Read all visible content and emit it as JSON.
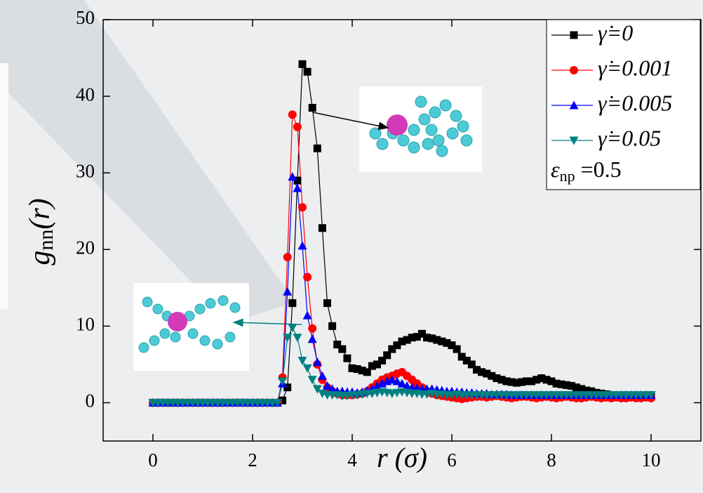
{
  "chart_data": {
    "type": "line",
    "x_label": "r (σ)",
    "y_label": {
      "main": "g",
      "subscript": "nn",
      "suffix": "(r)"
    },
    "annotation": {
      "symbol": "ε",
      "subscript": "np",
      "text": " =0.5"
    },
    "xlim": [
      -1,
      11
    ],
    "ylim": [
      -5,
      50
    ],
    "xticks": [
      0,
      2,
      4,
      6,
      8,
      10
    ],
    "yticks": [
      0,
      10,
      20,
      30,
      40,
      50
    ],
    "x": [
      0,
      0.1,
      0.2,
      0.3,
      0.4,
      0.5,
      0.6,
      0.7,
      0.8,
      0.9,
      1,
      1.1,
      1.2,
      1.3,
      1.4,
      1.5,
      1.6,
      1.7,
      1.8,
      1.9,
      2,
      2.1,
      2.2,
      2.3,
      2.4,
      2.5,
      2.6,
      2.7,
      2.8,
      2.9,
      3,
      3.1,
      3.2,
      3.3,
      3.4,
      3.5,
      3.6,
      3.7,
      3.8,
      3.9,
      4,
      4.1,
      4.2,
      4.3,
      4.4,
      4.5,
      4.6,
      4.7,
      4.8,
      4.9,
      5,
      5.1,
      5.2,
      5.3,
      5.4,
      5.5,
      5.6,
      5.7,
      5.8,
      5.9,
      6,
      6.1,
      6.2,
      6.3,
      6.4,
      6.5,
      6.6,
      6.7,
      6.8,
      6.9,
      7,
      7.1,
      7.2,
      7.3,
      7.4,
      7.5,
      7.6,
      7.7,
      7.8,
      7.9,
      8,
      8.1,
      8.2,
      8.3,
      8.4,
      8.5,
      8.6,
      8.7,
      8.8,
      8.9,
      9,
      9.1,
      9.2,
      9.3,
      9.4,
      9.5,
      9.6,
      9.7,
      9.8,
      9.9,
      10
    ],
    "series": [
      {
        "name": "γ̇=0",
        "color": "#000000",
        "marker": "square",
        "values": [
          0,
          0,
          0,
          0,
          0,
          0,
          0,
          0,
          0,
          0,
          0,
          0,
          0,
          0,
          0,
          0,
          0,
          0,
          0,
          0,
          0,
          0,
          0,
          0,
          0,
          0,
          0.3,
          2,
          13,
          29,
          44.2,
          43.2,
          38.5,
          33.2,
          22.8,
          13,
          10,
          7.6,
          7,
          5.8,
          4.5,
          4.4,
          4.2,
          4.0,
          4.8,
          5,
          5.5,
          6.2,
          7,
          7.5,
          8,
          8.2,
          8.5,
          8.6,
          9,
          8.5,
          8.4,
          8.2,
          8,
          7.8,
          7.5,
          7,
          6,
          5.5,
          5,
          4.3,
          4,
          3.8,
          3.5,
          3.2,
          3,
          2.8,
          2.7,
          2.6,
          2.7,
          2.8,
          2.8,
          3,
          3.2,
          3,
          2.8,
          2.5,
          2.4,
          2.3,
          2.2,
          2,
          1.8,
          1.6,
          1.5,
          1.3,
          1.2,
          1.1,
          1,
          1,
          1,
          0.9,
          0.9,
          0.9,
          0.9,
          0.9,
          0.9
        ]
      },
      {
        "name": "γ̇=0.001",
        "color": "#ff0000",
        "marker": "circle",
        "values": [
          0,
          0,
          0,
          0,
          0,
          0,
          0,
          0,
          0,
          0,
          0,
          0,
          0,
          0,
          0,
          0,
          0,
          0,
          0,
          0,
          0,
          0,
          0,
          0,
          0,
          0,
          3.3,
          19,
          37.6,
          36,
          25.5,
          16.4,
          9.7,
          5,
          3,
          2,
          1.5,
          1.2,
          1,
          1,
          1,
          1.1,
          1.2,
          1.5,
          2,
          2.5,
          3,
          3.3,
          3.5,
          3.8,
          4,
          3.5,
          3,
          2.5,
          2,
          1.5,
          1.2,
          1,
          0.9,
          0.8,
          0.7,
          0.6,
          0.5,
          0.6,
          0.7,
          0.8,
          0.8,
          0.7,
          0.8,
          0.9,
          0.8,
          0.7,
          0.6,
          0.7,
          0.8,
          0.8,
          0.7,
          0.6,
          0.7,
          0.8,
          0.7,
          0.6,
          0.7,
          0.8,
          0.7,
          0.6,
          0.6,
          0.7,
          0.8,
          0.7,
          0.6,
          0.7,
          0.6,
          0.7,
          0.6,
          0.6,
          0.7,
          0.6,
          0.6,
          0.7,
          0.6
        ]
      },
      {
        "name": "γ̇=0.005",
        "color": "#0000ff",
        "marker": "triangle-up",
        "values": [
          0,
          0,
          0,
          0,
          0,
          0,
          0,
          0,
          0,
          0,
          0,
          0,
          0,
          0,
          0,
          0,
          0,
          0,
          0,
          0,
          0,
          0,
          0,
          0,
          0,
          0,
          2.5,
          14.5,
          29.5,
          28,
          20.5,
          11.4,
          8.3,
          5.3,
          3.5,
          2.2,
          1.8,
          1.5,
          1.5,
          1.4,
          1.4,
          1.3,
          1.4,
          1.6,
          1.8,
          2.2,
          2.5,
          2.8,
          3,
          2.8,
          2.5,
          2.2,
          2,
          1.9,
          1.8,
          1.8,
          1.8,
          1.7,
          1.6,
          1.5,
          1.5,
          1.4,
          1.4,
          1.3,
          1.3,
          1.2,
          1.2,
          1.2,
          1.1,
          1.1,
          1.1,
          1.1,
          1,
          1,
          1,
          1,
          1,
          1,
          1,
          1,
          1,
          1,
          1,
          1,
          1,
          1,
          1,
          1,
          1,
          1,
          1,
          1,
          1,
          1,
          1,
          1,
          1,
          1,
          1,
          1,
          1
        ]
      },
      {
        "name": "γ̇=0.05",
        "color": "#008080",
        "marker": "triangle-down",
        "values": [
          0,
          0,
          0,
          0,
          0,
          0,
          0,
          0,
          0,
          0,
          0,
          0,
          0,
          0,
          0,
          0,
          0,
          0,
          0,
          0,
          0,
          0,
          0,
          0,
          0,
          0,
          2.8,
          8.5,
          9.8,
          8.5,
          5.5,
          4.5,
          3,
          1.8,
          1.2,
          1,
          1,
          1,
          0.9,
          0.9,
          1,
          1,
          1.1,
          1.2,
          1.2,
          1.3,
          1.4,
          1.3,
          1.2,
          1.3,
          1.4,
          1.3,
          1.2,
          1.2,
          1.1,
          1.1,
          1.2,
          1.1,
          1.1,
          1,
          1,
          1.1,
          1,
          1,
          1,
          1,
          1,
          1,
          1,
          1,
          1,
          1,
          1,
          1,
          1,
          1,
          1,
          1,
          1,
          1,
          1,
          1,
          1,
          1,
          1,
          1,
          1,
          1,
          1,
          1,
          1,
          1,
          1,
          1,
          1,
          1,
          1,
          1,
          1,
          1,
          1
        ]
      }
    ]
  }
}
